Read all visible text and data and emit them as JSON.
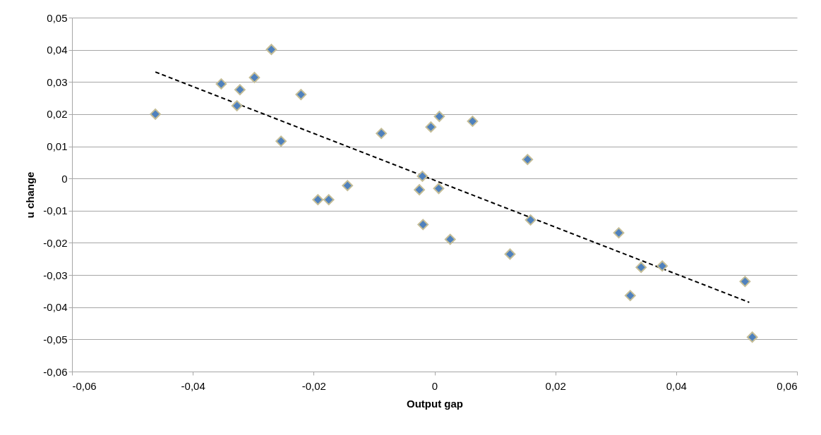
{
  "chart_data": {
    "type": "scatter",
    "xlabel": "Output gap",
    "ylabel": "u change",
    "x": [
      -0.0462,
      -0.0353,
      -0.0322,
      -0.0327,
      -0.0298,
      -0.027,
      -0.0254,
      -0.0221,
      -0.0193,
      -0.0175,
      -0.0144,
      -0.0088,
      -0.0025,
      -0.002,
      -0.0019,
      -0.0006,
      0.0008,
      0.0007,
      0.0026,
      0.0063,
      0.0125,
      0.0154,
      0.0159,
      0.0305,
      0.0324,
      0.0342,
      0.0377,
      0.0514,
      0.0526
    ],
    "series": [
      {
        "color": "#4f81bd",
        "marker": "diamond",
        "values": [
          0.02,
          0.0294,
          0.0276,
          0.0226,
          0.0314,
          0.0401,
          0.0116,
          0.0261,
          -0.0066,
          -0.0066,
          -0.0022,
          0.014,
          -0.0035,
          0.0007,
          -0.0143,
          0.016,
          0.0193,
          -0.0031,
          -0.0189,
          0.0178,
          -0.0235,
          0.0059,
          -0.0129,
          -0.0169,
          -0.0364,
          -0.0276,
          -0.0272,
          -0.032,
          -0.0493
        ]
      },
      {
        "type": "line",
        "color": "#000000",
        "line_style": "dashed",
        "marker": "none",
        "x": [
          -0.0462,
          0.0521
        ],
        "values": [
          0.0331,
          -0.0385
        ]
      }
    ],
    "xlim": [
      -0.06,
      0.06
    ],
    "ylim": [
      -0.06,
      0.05
    ],
    "xticks": [
      {
        "value": -0.06,
        "label": "-0,06"
      },
      {
        "value": -0.04,
        "label": "-0,04"
      },
      {
        "value": -0.02,
        "label": "-0,02"
      },
      0,
      {
        "value": 0.02,
        "label": "0,02"
      },
      {
        "value": 0.04,
        "label": "0,04"
      },
      {
        "value": 0.06,
        "label": "0,06"
      }
    ],
    "yticks": [
      {
        "value": -0.06,
        "label": "-0,06"
      },
      {
        "value": -0.05,
        "label": "-0,05"
      },
      {
        "value": -0.04,
        "label": "-0,04"
      },
      {
        "value": -0.03,
        "label": "-0,03"
      },
      {
        "value": -0.02,
        "label": "-0,02"
      },
      {
        "value": -0.01,
        "label": "-0,01"
      },
      0,
      {
        "value": 0.01,
        "label": "0,01"
      },
      {
        "value": 0.02,
        "label": "0,02"
      },
      {
        "value": 0.03,
        "label": "0,03"
      },
      {
        "value": 0.04,
        "label": "0,04"
      },
      {
        "value": 0.05,
        "label": "0,05"
      }
    ],
    "grid": "y"
  }
}
